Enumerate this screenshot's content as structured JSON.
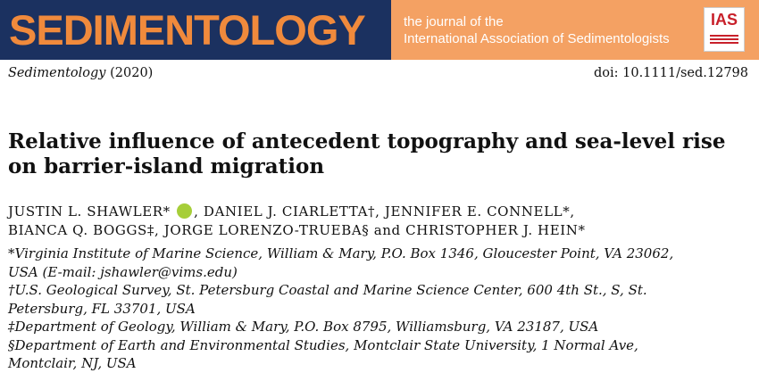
{
  "banner": {
    "journal": "SEDIMENTOLOGY",
    "tagline": [
      "the journal of the",
      "International Association of Sedimentologists"
    ],
    "logo": "IAS"
  },
  "citation": {
    "journal": "Sedimentology",
    "year": "(2020)",
    "doi": "doi: 10.1111/sed.12798"
  },
  "title": "Relative influence of antecedent topography and sea-level rise on barrier-island migration",
  "author_lines": [
    [
      "JUSTIN L. SHAWLER*",
      "DANIEL J. CIARLETTA†",
      "JENNIFER E. CONNELL*"
    ],
    [
      "BIANCA Q. BOGGS‡",
      "JORGE LORENZO-TRUEBA§",
      "CHRISTOPHER J. HEIN*"
    ]
  ],
  "author_separator": ",",
  "author_conjunction": "and",
  "affiliations": [
    "*Virginia Institute of Marine Science, William & Mary, P.O. Box 1346, Gloucester Point, VA 23062, USA (E-mail: jshawler@vims.edu)",
    "†U.S. Geological Survey, St. Petersburg Coastal and Marine Science Center, 600 4th St., S, St. Petersburg, FL 33701, USA",
    "‡Department of Geology, William & Mary, P.O. Box 8795, Williamsburg, VA 23187, USA",
    "§Department of Earth and Environmental Studies, Montclair State University, 1 Normal Ave, Montclair, NJ, USA"
  ]
}
